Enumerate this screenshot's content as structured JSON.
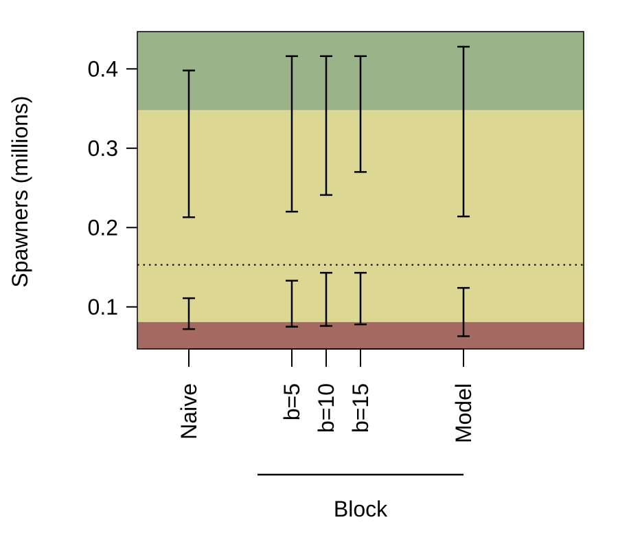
{
  "chart_data": {
    "type": "errorbar",
    "ylabel": "Spawners (millions)",
    "ylim": [
      0.047,
      0.447
    ],
    "yticks": [
      0.1,
      0.2,
      0.3,
      0.4
    ],
    "ytick_labels": [
      "0.1",
      "0.2",
      "0.3",
      "0.4"
    ],
    "categories": [
      {
        "label": "Naive",
        "x": 1
      },
      {
        "label": "b=5",
        "x": 4
      },
      {
        "label": "b=10",
        "x": 5
      },
      {
        "label": "b=15",
        "x": 6
      },
      {
        "label": "Model",
        "x": 9
      }
    ],
    "xlim": [
      -0.5,
      12.5
    ],
    "group_label": {
      "text": "Block",
      "x_from": 3,
      "x_to": 9
    },
    "bands": [
      {
        "from": 0.047,
        "to": 0.081,
        "color": "#a46a62"
      },
      {
        "from": 0.081,
        "to": 0.348,
        "color": "#dcd792"
      },
      {
        "from": 0.348,
        "to": 0.447,
        "color": "#9bb388"
      }
    ],
    "reference_line": {
      "y": 0.153,
      "style": "dotted"
    },
    "upper_intervals": [
      {
        "x": 1,
        "low": 0.213,
        "high": 0.398
      },
      {
        "x": 4,
        "low": 0.22,
        "high": 0.416
      },
      {
        "x": 5,
        "low": 0.241,
        "high": 0.416
      },
      {
        "x": 6,
        "low": 0.27,
        "high": 0.416
      },
      {
        "x": 9,
        "low": 0.214,
        "high": 0.428
      }
    ],
    "lower_intervals": [
      {
        "x": 1,
        "low": 0.072,
        "high": 0.111
      },
      {
        "x": 4,
        "low": 0.075,
        "high": 0.133
      },
      {
        "x": 5,
        "low": 0.076,
        "high": 0.143
      },
      {
        "x": 6,
        "low": 0.078,
        "high": 0.143
      },
      {
        "x": 9,
        "low": 0.063,
        "high": 0.124
      }
    ]
  }
}
